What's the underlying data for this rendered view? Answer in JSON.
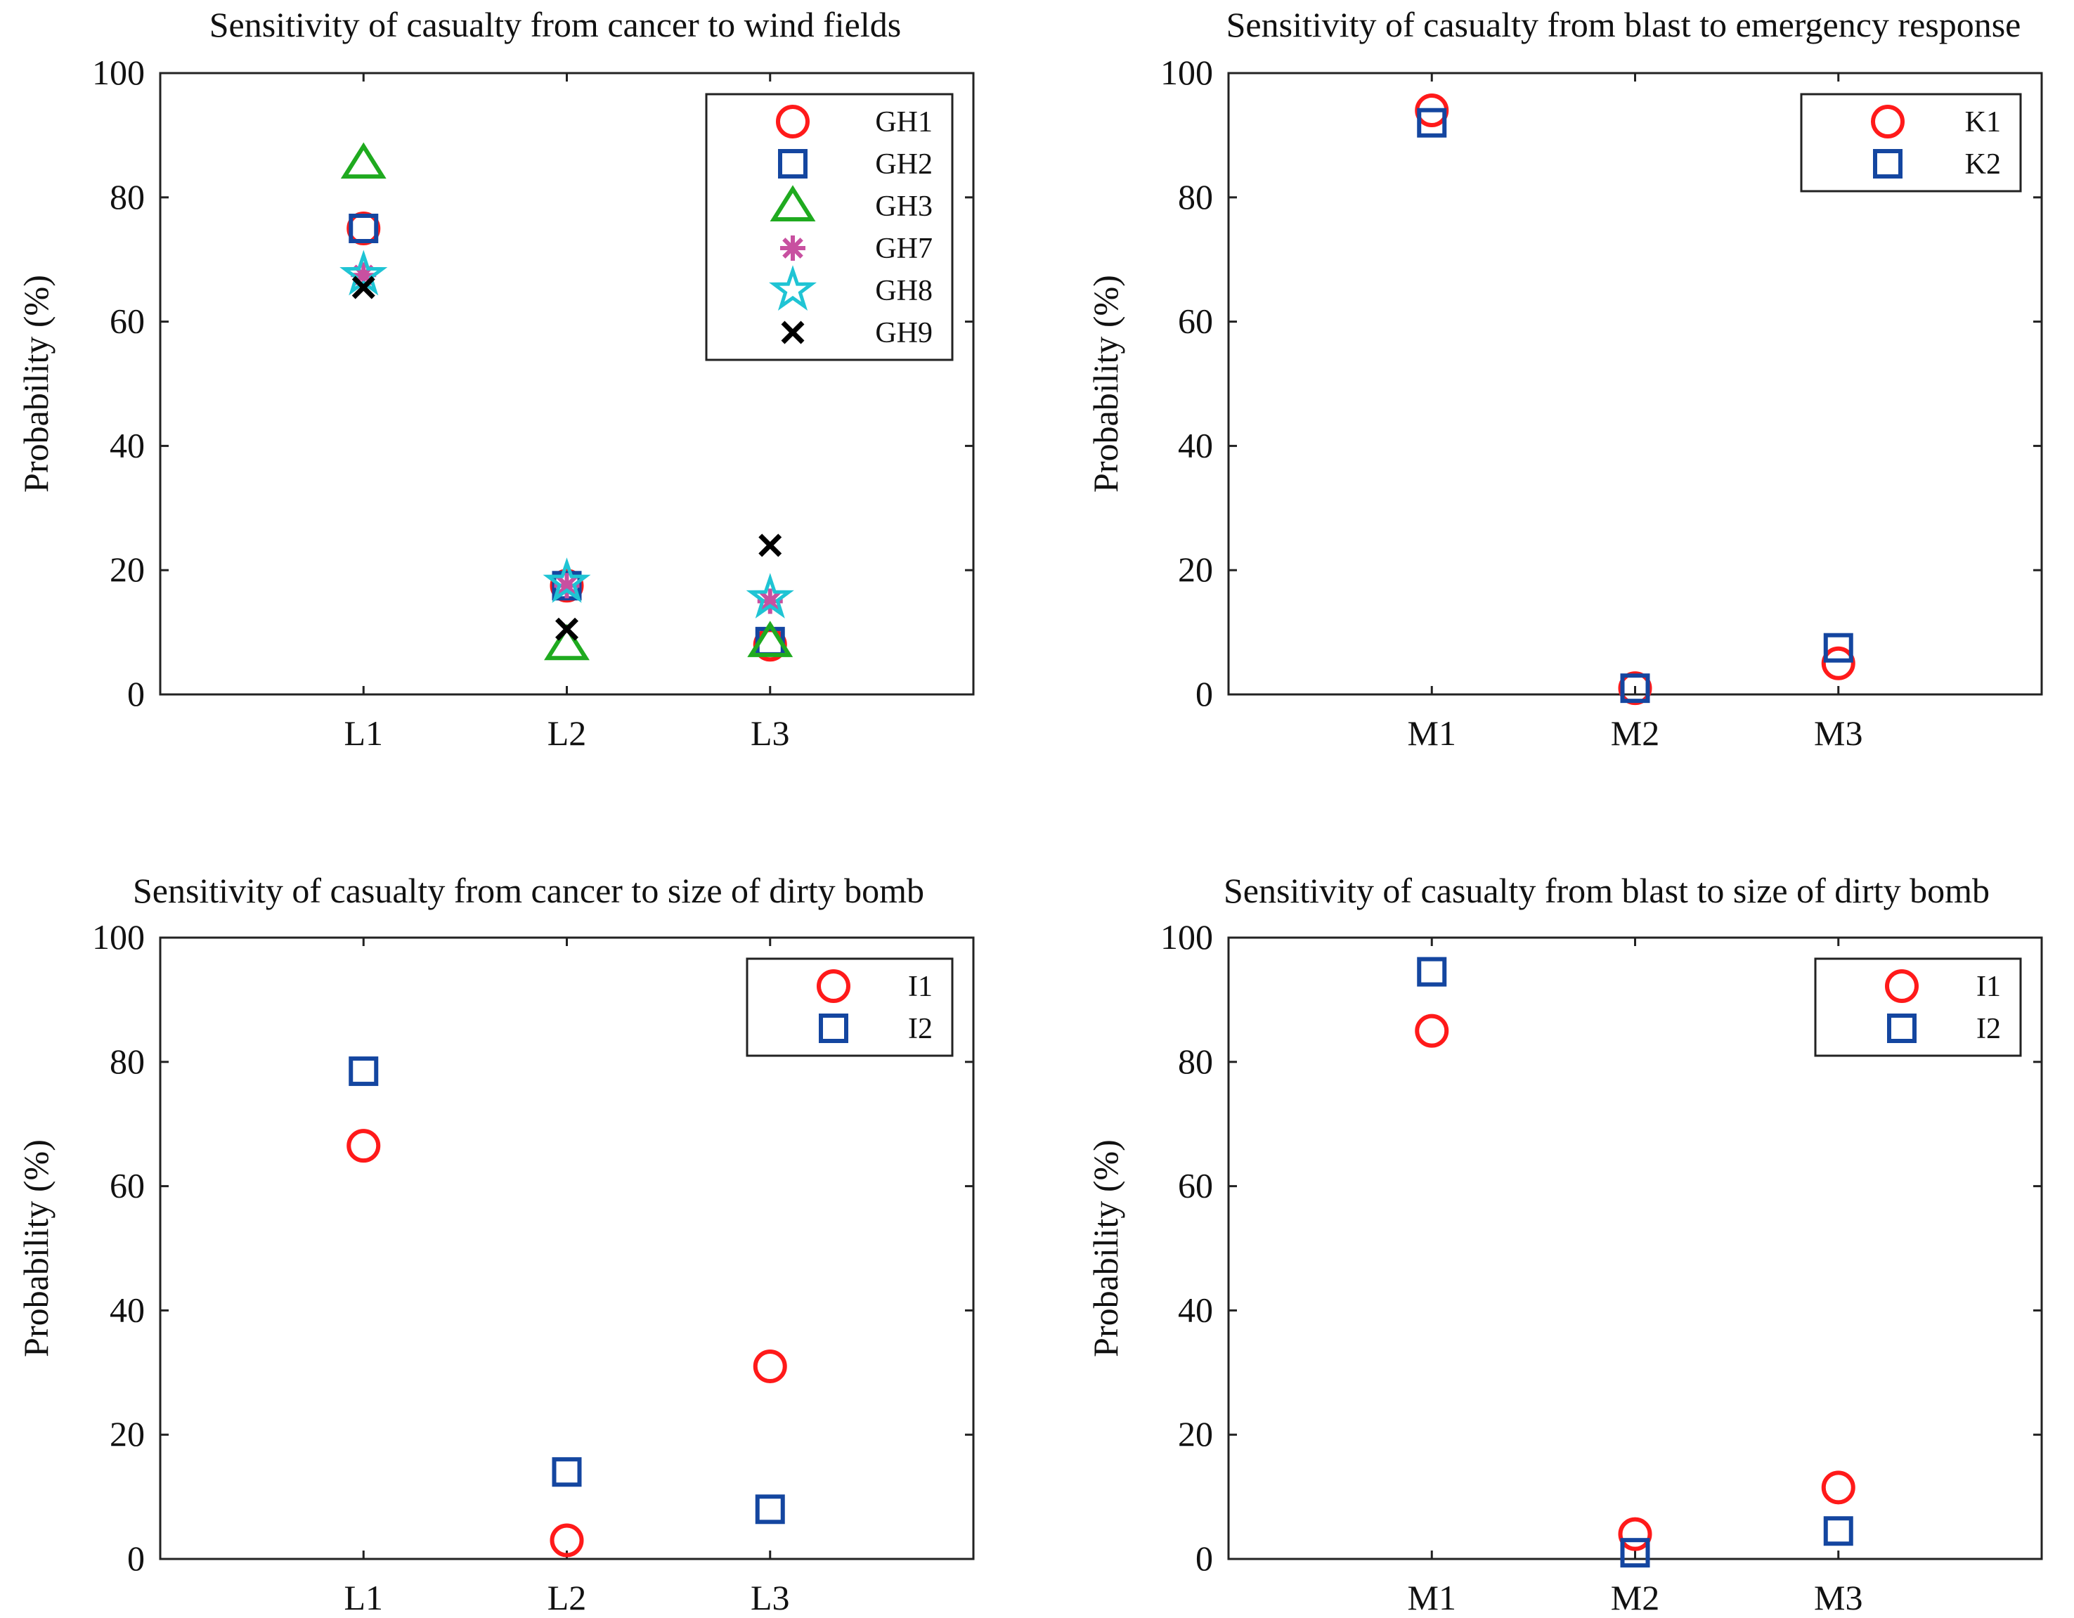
{
  "chart_data": [
    {
      "type": "scatter",
      "title": "Sensitivity of casualty from cancer to wind fields",
      "xlabel": "",
      "ylabel": "Probability (%)",
      "categories": [
        "L1",
        "L2",
        "L3"
      ],
      "ylim": [
        0,
        100
      ],
      "yticks": [
        0,
        20,
        40,
        60,
        80,
        100
      ],
      "legend_position": "top-right",
      "series": [
        {
          "name": "GH1",
          "marker": "circle",
          "color": "#ff1a1a",
          "values": [
            75,
            17.5,
            8
          ]
        },
        {
          "name": "GH2",
          "marker": "square",
          "color": "#1446a0",
          "values": [
            75,
            17.5,
            8.5
          ]
        },
        {
          "name": "GH3",
          "marker": "triangle",
          "color": "#1faa1f",
          "values": [
            85.5,
            8,
            8.5
          ]
        },
        {
          "name": "GH7",
          "marker": "asterisk",
          "color": "#c850a0",
          "values": [
            67.5,
            17.5,
            15
          ]
        },
        {
          "name": "GH8",
          "marker": "pentagram",
          "color": "#1fc4d4",
          "values": [
            67.5,
            18,
            15.5
          ]
        },
        {
          "name": "GH9",
          "marker": "x",
          "color": "#000000",
          "values": [
            65.5,
            10.5,
            24
          ]
        }
      ]
    },
    {
      "type": "scatter",
      "title": "Sensitivity of casualty from blast to emergency response",
      "xlabel": "",
      "ylabel": "Probability (%)",
      "categories": [
        "M1",
        "M2",
        "M3"
      ],
      "ylim": [
        0,
        100
      ],
      "yticks": [
        0,
        20,
        40,
        60,
        80,
        100
      ],
      "legend_position": "top-right",
      "series": [
        {
          "name": "K1",
          "marker": "circle",
          "color": "#ff1a1a",
          "values": [
            94,
            1,
            5
          ]
        },
        {
          "name": "K2",
          "marker": "square",
          "color": "#1446a0",
          "values": [
            92,
            1,
            7.5
          ]
        }
      ]
    },
    {
      "type": "scatter",
      "title": "Sensitivity of casualty from cancer to size of dirty bomb",
      "xlabel": "",
      "ylabel": "Probability (%)",
      "categories": [
        "L1",
        "L2",
        "L3"
      ],
      "ylim": [
        0,
        100
      ],
      "yticks": [
        0,
        20,
        40,
        60,
        80,
        100
      ],
      "legend_position": "top-right",
      "series": [
        {
          "name": "I1",
          "marker": "circle",
          "color": "#ff1a1a",
          "values": [
            66.5,
            3,
            31
          ]
        },
        {
          "name": "I2",
          "marker": "square",
          "color": "#1446a0",
          "values": [
            78.5,
            14,
            8
          ]
        }
      ]
    },
    {
      "type": "scatter",
      "title": "Sensitivity of casualty from blast to size of dirty bomb",
      "xlabel": "",
      "ylabel": "Probability (%)",
      "categories": [
        "M1",
        "M2",
        "M3"
      ],
      "ylim": [
        0,
        100
      ],
      "yticks": [
        0,
        20,
        40,
        60,
        80,
        100
      ],
      "legend_position": "top-right",
      "series": [
        {
          "name": "I1",
          "marker": "circle",
          "color": "#ff1a1a",
          "values": [
            85,
            4,
            11.5
          ]
        },
        {
          "name": "I2",
          "marker": "square",
          "color": "#1446a0",
          "values": [
            94.5,
            1,
            4.5
          ]
        }
      ]
    }
  ]
}
